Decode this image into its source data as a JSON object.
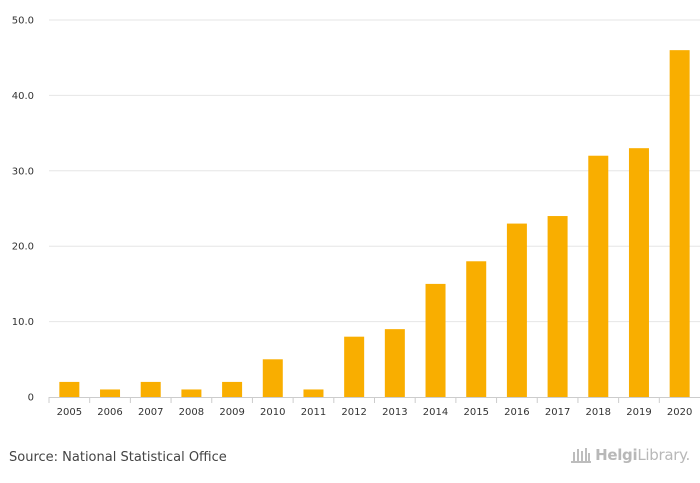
{
  "chart_data": {
    "type": "bar",
    "categories": [
      "2005",
      "2006",
      "2007",
      "2008",
      "2009",
      "2010",
      "2011",
      "2012",
      "2013",
      "2014",
      "2015",
      "2016",
      "2017",
      "2018",
      "2019",
      "2020"
    ],
    "values": [
      2,
      1,
      2,
      1,
      2,
      5,
      1,
      8,
      9,
      15,
      18,
      23,
      24,
      32,
      33,
      46
    ],
    "ylim": [
      0,
      50
    ],
    "yticks": [
      0,
      10,
      20,
      30,
      40,
      50
    ],
    "ytick_labels": [
      "0",
      "10.0",
      "20.0",
      "30.0",
      "40.0",
      "50.0"
    ],
    "title": "",
    "xlabel": "",
    "ylabel": "",
    "grid": true,
    "bar_color": "#f9ae00",
    "grid_color": "#e6e6e6"
  },
  "footer": {
    "source": "Source: National Statistical Office",
    "brand_part1": "Helgi",
    "brand_part2": "Library."
  }
}
